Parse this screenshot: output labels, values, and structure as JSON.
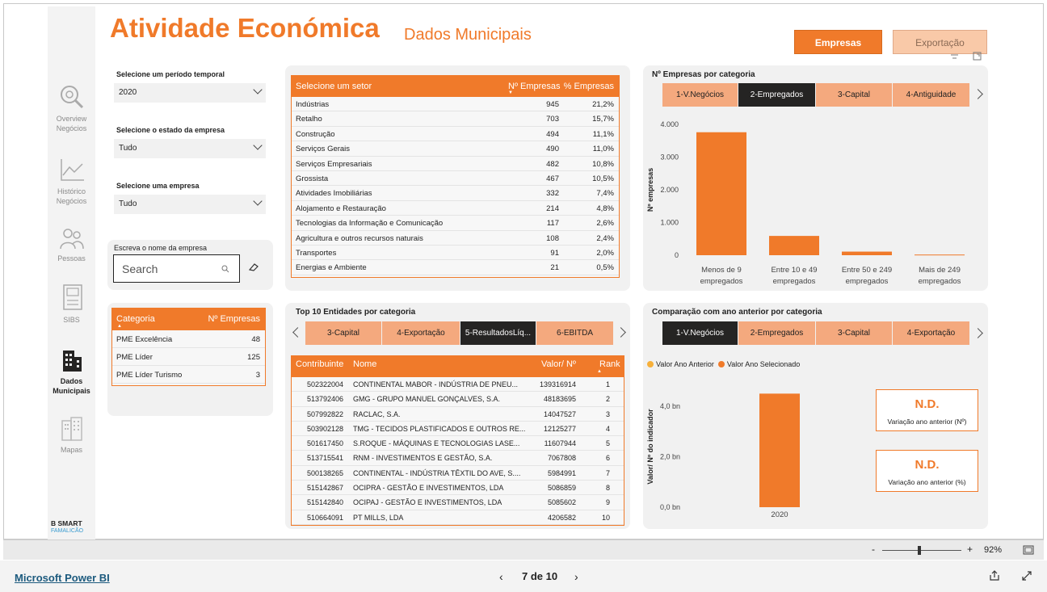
{
  "header": {
    "title": "Atividade Económica",
    "subtitle": "Dados Municipais"
  },
  "toggle": {
    "empresas": "Empresas",
    "exportacao": "Exportação"
  },
  "nav": [
    {
      "label1": "Overview",
      "label2": "Negócios",
      "icon": "magnifier-icon"
    },
    {
      "label1": "Histórico",
      "label2": "Negócios",
      "icon": "line-chart-icon"
    },
    {
      "label1": "Pessoas",
      "label2": "",
      "icon": "people-icon"
    },
    {
      "label1": "SIBS",
      "label2": "",
      "icon": "atm-icon"
    },
    {
      "label1": "Dados",
      "label2": "Municipais",
      "icon": "buildings-icon"
    },
    {
      "label1": "Mapas",
      "label2": "",
      "icon": "city-icon"
    }
  ],
  "logo": {
    "top": "B SMART",
    "bottom": "FAMALICÃO"
  },
  "filters": {
    "periodo_label": "Selecione um período temporal",
    "periodo_value": "2020",
    "estado_label": "Selecione o estado da empresa",
    "estado_value": "Tudo",
    "empresa_label": "Selecione uma empresa",
    "empresa_value": "Tudo",
    "nome_label": "Escreva o nome da empresa",
    "search_placeholder": "Search"
  },
  "categoria_table": {
    "headers": [
      "Categoria",
      "Nº Empresas"
    ],
    "rows": [
      [
        "PME Excelência",
        "48"
      ],
      [
        "PME Líder",
        "125"
      ],
      [
        "PME Líder Turismo",
        "3"
      ]
    ]
  },
  "setor_table": {
    "headers": [
      "Selecione um setor",
      "Nº Empresas",
      "% Empresas"
    ],
    "rows": [
      [
        "Indústrias",
        "945",
        "21,2%"
      ],
      [
        "Retalho",
        "703",
        "15,7%"
      ],
      [
        "Construção",
        "494",
        "11,1%"
      ],
      [
        "Serviços Gerais",
        "490",
        "11,0%"
      ],
      [
        "Serviços Empresariais",
        "482",
        "10,8%"
      ],
      [
        "Grossista",
        "467",
        "10,5%"
      ],
      [
        "Atividades Imobiliárias",
        "332",
        "7,4%"
      ],
      [
        "Alojamento e Restauração",
        "214",
        "4,8%"
      ],
      [
        "Tecnologias da Informação e Comunicação",
        "117",
        "2,6%"
      ],
      [
        "Agricultura e outros recursos naturais",
        "108",
        "2,4%"
      ],
      [
        "Transportes",
        "91",
        "2,0%"
      ],
      [
        "Energias e Ambiente",
        "21",
        "0,5%"
      ]
    ]
  },
  "top10": {
    "title": "Top 10 Entidades por categoria",
    "tabs": [
      "3-Capital",
      "4-Exportação",
      "5-ResultadosLíq...",
      "6-EBITDA"
    ],
    "headers": [
      "Contribuinte",
      "Nome",
      "Valor/ Nº",
      "Rank"
    ],
    "rows": [
      [
        "502322004",
        "CONTINENTAL MABOR - INDÚSTRIA DE PNEU...",
        "139316914",
        "1"
      ],
      [
        "513792406",
        "GMG - GRUPO MANUEL GONÇALVES, S.A.",
        "48183695",
        "2"
      ],
      [
        "507992822",
        "RACLAC, S.A.",
        "14047527",
        "3"
      ],
      [
        "503902128",
        "TMG - TECIDOS PLASTIFICADOS E OUTROS RE...",
        "12125277",
        "4"
      ],
      [
        "501617450",
        "S.ROQUE - MÁQUINAS E TECNOLOGIAS LASE...",
        "11607944",
        "5"
      ],
      [
        "513715541",
        "RNM - INVESTIMENTOS E GESTÃO, S.A.",
        "7067808",
        "6"
      ],
      [
        "500138265",
        "CONTINENTAL - INDÚSTRIA TÊXTIL DO AVE, S....",
        "5984991",
        "7"
      ],
      [
        "515142867",
        "OCIPRA - GESTÃO E INVESTIMENTOS, LDA",
        "5086859",
        "8"
      ],
      [
        "515142840",
        "OCIPAJ - GESTÃO E INVESTIMENTOS, LDA",
        "5085602",
        "9"
      ],
      [
        "510664091",
        "PT MILLS, LDA",
        "4206582",
        "10"
      ]
    ]
  },
  "empresas_chart_panel": {
    "title": "Nº Empresas por categoria",
    "tabs": [
      "1-V.Negócios",
      "2-Empregados",
      "3-Capital",
      "4-Antiguidade"
    ]
  },
  "comparacao_panel": {
    "title": "Comparação com ano anterior por categoria",
    "tabs": [
      "1-V.Negócios",
      "2-Empregados",
      "3-Capital",
      "4-Exportação"
    ],
    "legend": [
      "Valor Ano Anterior",
      "Valor Ano Selecionado"
    ],
    "legend_colors": [
      "#f7b03a",
      "#f07a2a"
    ],
    "card1_value": "N.D.",
    "card1_label": "Variação ano anterior (Nº)",
    "card2_value": "N.D.",
    "card2_label": "Variação ano anterior (%)"
  },
  "chart_data": [
    {
      "type": "bar",
      "title": "Nº Empresas por categoria",
      "ylabel": "Nº empresas",
      "xlabel": "",
      "categories": [
        "Menos de 9 empregados",
        "Entre 10 e 49 empregados",
        "Entre 50 e 249 empregados",
        "Mais de 249 empregados"
      ],
      "category_lines": [
        [
          "Menos de 9",
          "empregados"
        ],
        [
          "Entre 10 e 49",
          "empregados"
        ],
        [
          "Entre 50 e 249",
          "empregados"
        ],
        [
          "Mais de 249",
          "empregados"
        ]
      ],
      "values": [
        3760,
        590,
        110,
        20
      ],
      "ylim": [
        0,
        4000
      ],
      "yticks": [
        "4.000",
        "3.000",
        "2.000",
        "1.000",
        "0"
      ],
      "ytick_values": [
        4000,
        3000,
        2000,
        1000,
        0
      ],
      "color": "#f07a2a"
    },
    {
      "type": "bar",
      "title": "Comparação com ano anterior por categoria",
      "ylabel": "Valor/ Nº do indicador",
      "xlabel": "",
      "categories": [
        "2020"
      ],
      "series": [
        {
          "name": "Valor Ano Selecionado",
          "values": [
            4.5
          ]
        }
      ],
      "unit": "bn",
      "ylim": [
        0,
        4.8
      ],
      "yticks": [
        "4,0 bn",
        "2,0 bn",
        "0,0 bn"
      ],
      "ytick_values": [
        4,
        2,
        0
      ],
      "color": "#f07a2a"
    }
  ],
  "footer": {
    "zoom": "92%",
    "brand": "Microsoft Power BI",
    "page": "7 de 10"
  }
}
